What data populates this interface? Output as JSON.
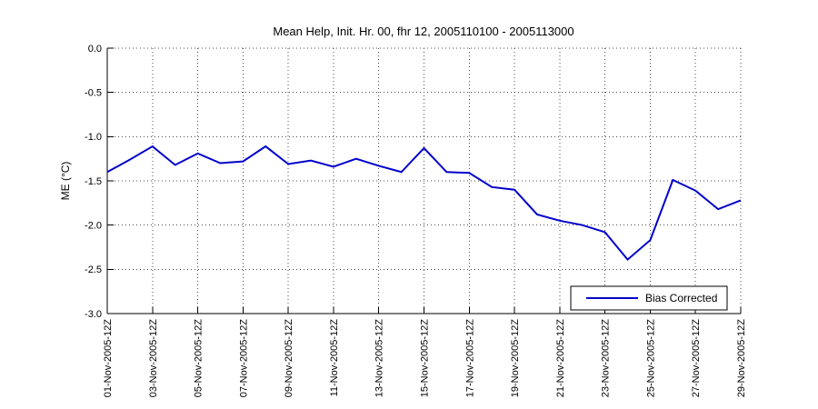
{
  "figure": {
    "background": "#ffffff",
    "axis_color": "#000000",
    "grid_color": "#4d4d4d"
  },
  "chart_data": {
    "type": "line",
    "title": "Mean Help, Init. Hr. 00, fhr 12, 2005110100 - 2005113000",
    "xlabel": "",
    "ylabel": "ME (°C)",
    "ylim": [
      -3.0,
      0.0
    ],
    "yticks": [
      0.0,
      -0.5,
      -1.0,
      -1.5,
      -2.0,
      -2.5,
      -3.0
    ],
    "ytick_labels": [
      "0.0",
      "-0.5",
      "-1.0",
      "-1.5",
      "-2.0",
      "-2.5",
      "-3.0"
    ],
    "xlim_days": [
      1,
      29
    ],
    "xtick_days": [
      1,
      3,
      5,
      7,
      9,
      11,
      13,
      15,
      17,
      19,
      21,
      23,
      25,
      27,
      29
    ],
    "xtick_labels": [
      "01-Nov-2005-12Z",
      "03-Nov-2005-12Z",
      "05-Nov-2005-12Z",
      "07-Nov-2005-12Z",
      "09-Nov-2005-12Z",
      "11-Nov-2005-12Z",
      "13-Nov-2005-12Z",
      "15-Nov-2005-12Z",
      "17-Nov-2005-12Z",
      "19-Nov-2005-12Z",
      "21-Nov-2005-12Z",
      "23-Nov-2005-12Z",
      "25-Nov-2005-12Z",
      "27-Nov-2005-12Z",
      "29-Nov-2005-12Z"
    ],
    "grid": "on",
    "legend": {
      "position": "lower-right",
      "label": "Bias Corrected"
    },
    "series": [
      {
        "name": "Bias Corrected",
        "color": "#0000cc",
        "x_days": [
          1,
          2,
          3,
          4,
          5,
          6,
          7,
          8,
          9,
          10,
          11,
          12,
          13,
          14,
          15,
          16,
          17,
          18,
          19,
          20,
          21,
          22,
          23,
          24,
          25,
          26,
          27,
          28,
          29
        ],
        "values": [
          -1.4,
          -1.26,
          -1.11,
          -1.32,
          -1.19,
          -1.3,
          -1.28,
          -1.11,
          -1.31,
          -1.27,
          -1.34,
          -1.25,
          -1.33,
          -1.4,
          -1.13,
          -1.4,
          -1.41,
          -1.57,
          -1.6,
          -1.88,
          -1.95,
          -2.0,
          -2.08,
          -2.39,
          -2.17,
          -1.49,
          -1.61,
          -1.82,
          -1.72
        ]
      }
    ]
  }
}
